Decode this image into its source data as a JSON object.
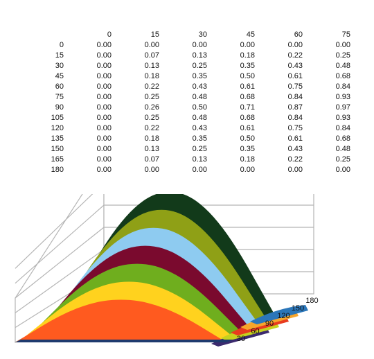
{
  "chart_data": {
    "type": "surface",
    "table": {
      "column_headers": [
        "0",
        "15",
        "30",
        "45",
        "60",
        "75"
      ],
      "row_headers": [
        "0",
        "15",
        "30",
        "45",
        "60",
        "75",
        "90",
        "105",
        "120",
        "135",
        "150",
        "165",
        "180"
      ],
      "rows": [
        [
          "0.00",
          "0.00",
          "0.00",
          "0.00",
          "0.00",
          "0.00"
        ],
        [
          "0.00",
          "0.07",
          "0.13",
          "0.18",
          "0.22",
          "0.25"
        ],
        [
          "0.00",
          "0.13",
          "0.25",
          "0.35",
          "0.43",
          "0.48"
        ],
        [
          "0.00",
          "0.18",
          "0.35",
          "0.50",
          "0.61",
          "0.68"
        ],
        [
          "0.00",
          "0.22",
          "0.43",
          "0.61",
          "0.75",
          "0.84"
        ],
        [
          "0.00",
          "0.25",
          "0.48",
          "0.68",
          "0.84",
          "0.93"
        ],
        [
          "0.00",
          "0.26",
          "0.50",
          "0.71",
          "0.87",
          "0.97"
        ],
        [
          "0.00",
          "0.25",
          "0.48",
          "0.68",
          "0.84",
          "0.93"
        ],
        [
          "0.00",
          "0.22",
          "0.43",
          "0.61",
          "0.75",
          "0.84"
        ],
        [
          "0.00",
          "0.18",
          "0.35",
          "0.50",
          "0.61",
          "0.68"
        ],
        [
          "0.00",
          "0.13",
          "0.25",
          "0.35",
          "0.43",
          "0.48"
        ],
        [
          "0.00",
          "0.07",
          "0.13",
          "0.18",
          "0.22",
          "0.25"
        ],
        [
          "0.00",
          "0.00",
          "0.00",
          "0.00",
          "0.00",
          "0.00"
        ]
      ]
    },
    "depth_axis_labels": [
      "30",
      "60",
      "90",
      "120",
      "150",
      "180"
    ],
    "surface_profile": {
      "x": [
        0,
        15,
        30,
        45,
        60,
        75,
        90,
        105,
        120,
        135,
        150,
        165,
        180
      ],
      "y": [
        0,
        0.25,
        0.5,
        0.71,
        0.87,
        0.97,
        1.0,
        0.97,
        0.87,
        0.71,
        0.5,
        0.25,
        0
      ],
      "ylim": [
        0,
        1.0
      ]
    },
    "bands": [
      {
        "color": "#FF5A1F"
      },
      {
        "color": "#FFD21E"
      },
      {
        "color": "#6FAE1E"
      },
      {
        "color": "#7A0A2E"
      },
      {
        "color": "#8ECBF0"
      },
      {
        "color": "#8FA016"
      },
      {
        "color": "#123A1A"
      }
    ],
    "grid": true
  }
}
